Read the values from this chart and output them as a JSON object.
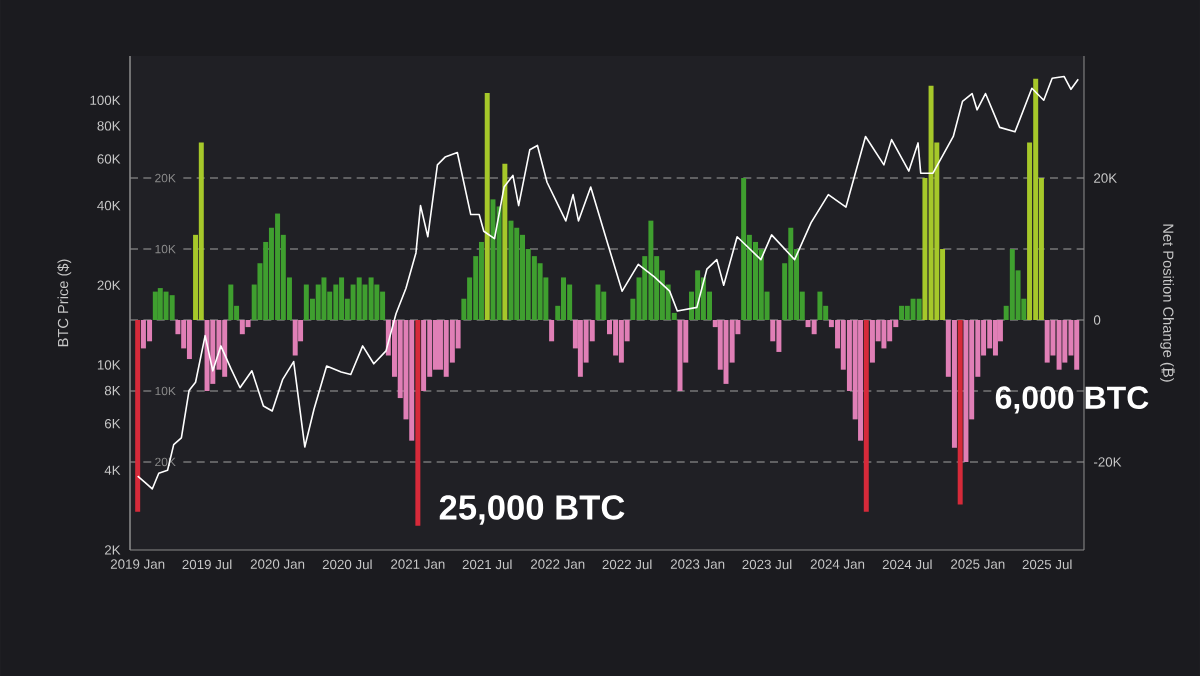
{
  "chart_data": {
    "type": "bar",
    "ylabel": "BTC Price ($)",
    "y2label": "Net Position Change (₿)",
    "annotations": [
      "25,000 BTC",
      "6,000 BTC"
    ],
    "log": "y",
    "grid": "y",
    "xlim": [
      "2018-12-12",
      "2025-10-05"
    ],
    "xticks": [
      {
        "value": "2019-01-01",
        "label": "2019 Jan"
      },
      {
        "value": "2019-07-01",
        "label": "2019 Jul"
      },
      {
        "value": "2020-01-01",
        "label": "2020 Jan"
      },
      {
        "value": "2020-07-01",
        "label": "2020 Jul"
      },
      {
        "value": "2021-01-01",
        "label": "2021 Jan"
      },
      {
        "value": "2021-07-01",
        "label": "2021 Jul"
      },
      {
        "value": "2022-01-01",
        "label": "2022 Jan"
      },
      {
        "value": "2022-07-01",
        "label": "2022 Jul"
      },
      {
        "value": "2023-01-01",
        "label": "2023 Jan"
      },
      {
        "value": "2023-07-01",
        "label": "2023 Jul"
      },
      {
        "value": "2024-01-01",
        "label": "2024 Jan"
      },
      {
        "value": "2024-07-01",
        "label": "2024 Jul"
      },
      {
        "value": "2025-01-01",
        "label": "2025 Jan"
      },
      {
        "value": "2025-07-01",
        "label": "2025 Jul"
      }
    ],
    "ylim": [
      2000,
      147000
    ],
    "yticks": [
      {
        "value": 2000,
        "label": "2K"
      },
      {
        "value": 4000,
        "label": "4K"
      },
      {
        "value": 6000,
        "label": "6K"
      },
      {
        "value": 8000,
        "label": "8K"
      },
      {
        "value": 10000,
        "label": "10K"
      },
      {
        "value": 20000,
        "label": "20K"
      },
      {
        "value": 40000,
        "label": "40K"
      },
      {
        "value": 60000,
        "label": "60K"
      },
      {
        "value": 80000,
        "label": "80K"
      },
      {
        "value": 100000,
        "label": "100K"
      }
    ],
    "y2lim": [
      -32400,
      37200
    ],
    "y2ticks": [
      {
        "value": -20000,
        "label": "-20K"
      },
      {
        "value": -10000,
        "label": null
      },
      0,
      {
        "value": 10000,
        "label": null
      },
      {
        "value": 20000,
        "label": "20K"
      }
    ],
    "y3lim": [
      -32400,
      37200
    ],
    "y3ticks": [
      {
        "value": -20000,
        "label": "20K"
      },
      {
        "value": -10000,
        "label": "10K"
      },
      {
        "value": 10000,
        "label": "10K"
      },
      {
        "value": 20000,
        "label": "20K"
      }
    ],
    "series": [
      {
        "axis": "y2",
        "x": [
          "2019-01-01",
          "2019-01-16",
          "2019-02-01",
          "2019-02-16",
          "2019-03-01",
          "2019-03-16",
          "2019-04-01",
          "2019-04-16",
          "2019-05-01",
          "2019-05-16",
          "2019-06-01",
          "2019-06-16",
          "2019-07-01",
          "2019-07-16",
          "2019-08-01",
          "2019-08-16",
          "2019-09-01",
          "2019-09-16",
          "2019-10-01",
          "2019-10-16",
          "2019-11-01",
          "2019-11-16",
          "2019-12-01",
          "2019-12-16",
          "2020-01-01",
          "2020-01-16",
          "2020-02-01",
          "2020-02-16",
          "2020-03-01",
          "2020-03-16",
          "2020-04-01",
          "2020-04-16",
          "2020-05-01",
          "2020-05-16",
          "2020-06-01",
          "2020-06-16",
          "2020-07-01",
          "2020-07-16",
          "2020-08-01",
          "2020-08-16",
          "2020-09-01",
          "2020-09-16",
          "2020-10-01",
          "2020-10-16",
          "2020-11-01",
          "2020-11-16",
          "2020-12-01",
          "2020-12-16",
          "2021-01-01",
          "2021-01-16",
          "2021-02-01",
          "2021-02-16",
          "2021-03-01",
          "2021-03-16",
          "2021-04-01",
          "2021-04-16",
          "2021-05-01",
          "2021-05-16",
          "2021-06-01",
          "2021-06-16",
          "2021-07-01",
          "2021-07-16",
          "2021-08-01",
          "2021-08-16",
          "2021-09-01",
          "2021-09-16",
          "2021-10-01",
          "2021-10-16",
          "2021-11-01",
          "2021-11-16",
          "2021-12-01",
          "2021-12-16",
          "2022-01-01",
          "2022-01-16",
          "2022-02-01",
          "2022-02-16",
          "2022-03-01",
          "2022-03-16",
          "2022-04-01",
          "2022-04-16",
          "2022-05-01",
          "2022-05-16",
          "2022-06-01",
          "2022-06-16",
          "2022-07-01",
          "2022-07-16",
          "2022-08-01",
          "2022-08-16",
          "2022-09-01",
          "2022-09-16",
          "2022-10-01",
          "2022-10-16",
          "2022-11-01",
          "2022-11-16",
          "2022-12-01",
          "2022-12-16",
          "2023-01-01",
          "2023-01-16",
          "2023-02-01",
          "2023-02-16",
          "2023-03-01",
          "2023-03-16",
          "2023-04-01",
          "2023-04-16",
          "2023-05-01",
          "2023-05-16",
          "2023-06-01",
          "2023-06-16",
          "2023-07-01",
          "2023-07-16",
          "2023-08-01",
          "2023-08-16",
          "2023-09-01",
          "2023-09-16",
          "2023-10-01",
          "2023-10-16",
          "2023-11-01",
          "2023-11-16",
          "2023-12-01",
          "2023-12-16",
          "2024-01-01",
          "2024-01-16",
          "2024-02-01",
          "2024-02-16",
          "2024-03-01",
          "2024-03-16",
          "2024-04-01",
          "2024-04-16",
          "2024-05-01",
          "2024-05-16",
          "2024-06-01",
          "2024-06-16",
          "2024-07-01",
          "2024-07-16",
          "2024-08-01",
          "2024-08-16",
          "2024-09-01",
          "2024-09-16",
          "2024-10-01",
          "2024-10-16",
          "2024-11-01",
          "2024-11-16",
          "2024-12-01",
          "2024-12-16",
          "2025-01-01",
          "2025-01-16",
          "2025-02-01",
          "2025-02-16",
          "2025-03-01",
          "2025-03-16",
          "2025-04-01",
          "2025-04-16",
          "2025-05-01",
          "2025-05-16",
          "2025-06-01",
          "2025-06-16",
          "2025-07-01",
          "2025-07-16",
          "2025-08-01",
          "2025-08-16",
          "2025-09-01",
          "2025-09-16"
        ],
        "values": [
          -27000,
          -4000,
          -3000,
          4000,
          4500,
          4000,
          3500,
          -2000,
          -4000,
          -5500,
          12000,
          25000,
          -10000,
          -9000,
          -7000,
          -8000,
          5000,
          2000,
          -2000,
          -1000,
          5000,
          8000,
          11000,
          13000,
          15000,
          12000,
          6000,
          -5000,
          -3000,
          5000,
          3000,
          5000,
          6000,
          4000,
          5000,
          6000,
          3000,
          5000,
          6000,
          5000,
          6000,
          5000,
          4000,
          -5000,
          -8000,
          -11000,
          -14000,
          -17000,
          -29000,
          -10000,
          -8000,
          -7000,
          -7000,
          -8000,
          -6000,
          -4000,
          3000,
          6000,
          9000,
          11000,
          32000,
          17000,
          16000,
          22000,
          14000,
          13000,
          12000,
          10000,
          9000,
          8000,
          6000,
          -3000,
          2000,
          6000,
          5000,
          -4000,
          -8000,
          -6000,
          -3000,
          5000,
          4000,
          -2000,
          -5000,
          -6000,
          -3000,
          3000,
          6000,
          9000,
          14000,
          9000,
          7000,
          5000,
          1000,
          -10000,
          -6000,
          4000,
          7000,
          6000,
          4000,
          -1000,
          -7000,
          -9000,
          -6000,
          -2000,
          20000,
          12000,
          11000,
          10000,
          4000,
          -3000,
          -4500,
          8000,
          13000,
          10000,
          4000,
          -1000,
          -2000,
          4000,
          2000,
          -1000,
          -4000,
          -7000,
          -10000,
          -14000,
          -17000,
          -27000,
          -6000,
          -3000,
          -4000,
          -3000,
          -1000,
          2000,
          2000,
          3000,
          3000,
          20000,
          33000,
          25000,
          10000,
          -8000,
          -18000,
          -26000,
          -20000,
          -14000,
          -8000,
          -5000,
          -4000,
          -5000,
          -3000,
          2000,
          10000,
          7000,
          3000,
          25000,
          34000,
          20000,
          -6000,
          -5000,
          -7000,
          -6000,
          -5000,
          -7000
        ],
        "colors": [
          "#d62a3a",
          "#e07fb6",
          "#e07fb6",
          "#3f9f2f",
          "#3f9f2f",
          "#3f9f2f",
          "#3f9f2f",
          "#e07fb6",
          "#e07fb6",
          "#e07fb6",
          "#a6c82a",
          "#a6c82a",
          "#e07fb6",
          "#e07fb6",
          "#e07fb6",
          "#e07fb6",
          "#3f9f2f",
          "#3f9f2f",
          "#e07fb6",
          "#e07fb6",
          "#3f9f2f",
          "#3f9f2f",
          "#3f9f2f",
          "#3f9f2f",
          "#3f9f2f",
          "#3f9f2f",
          "#3f9f2f",
          "#e07fb6",
          "#e07fb6",
          "#3f9f2f",
          "#3f9f2f",
          "#3f9f2f",
          "#3f9f2f",
          "#3f9f2f",
          "#3f9f2f",
          "#3f9f2f",
          "#3f9f2f",
          "#3f9f2f",
          "#3f9f2f",
          "#3f9f2f",
          "#3f9f2f",
          "#3f9f2f",
          "#3f9f2f",
          "#e07fb6",
          "#e07fb6",
          "#e07fb6",
          "#e07fb6",
          "#e07fb6",
          "#d62a3a",
          "#e07fb6",
          "#e07fb6",
          "#e07fb6",
          "#e07fb6",
          "#e07fb6",
          "#e07fb6",
          "#e07fb6",
          "#3f9f2f",
          "#3f9f2f",
          "#3f9f2f",
          "#3f9f2f",
          "#a6c82a",
          "#3f9f2f",
          "#3f9f2f",
          "#a6c82a",
          "#3f9f2f",
          "#3f9f2f",
          "#3f9f2f",
          "#3f9f2f",
          "#3f9f2f",
          "#3f9f2f",
          "#3f9f2f",
          "#e07fb6",
          "#3f9f2f",
          "#3f9f2f",
          "#3f9f2f",
          "#e07fb6",
          "#e07fb6",
          "#e07fb6",
          "#e07fb6",
          "#3f9f2f",
          "#3f9f2f",
          "#e07fb6",
          "#e07fb6",
          "#e07fb6",
          "#e07fb6",
          "#3f9f2f",
          "#3f9f2f",
          "#3f9f2f",
          "#3f9f2f",
          "#3f9f2f",
          "#3f9f2f",
          "#3f9f2f",
          "#3f9f2f",
          "#e07fb6",
          "#e07fb6",
          "#3f9f2f",
          "#3f9f2f",
          "#3f9f2f",
          "#3f9f2f",
          "#e07fb6",
          "#e07fb6",
          "#e07fb6",
          "#e07fb6",
          "#e07fb6",
          "#3f9f2f",
          "#3f9f2f",
          "#3f9f2f",
          "#3f9f2f",
          "#3f9f2f",
          "#e07fb6",
          "#e07fb6",
          "#3f9f2f",
          "#3f9f2f",
          "#3f9f2f",
          "#3f9f2f",
          "#e07fb6",
          "#e07fb6",
          "#3f9f2f",
          "#3f9f2f",
          "#e07fb6",
          "#e07fb6",
          "#e07fb6",
          "#e07fb6",
          "#e07fb6",
          "#e07fb6",
          "#d62a3a",
          "#e07fb6",
          "#e07fb6",
          "#e07fb6",
          "#e07fb6",
          "#e07fb6",
          "#3f9f2f",
          "#3f9f2f",
          "#3f9f2f",
          "#3f9f2f",
          "#a6c82a",
          "#a6c82a",
          "#a6c82a",
          "#a6c82a",
          "#e07fb6",
          "#e07fb6",
          "#d62a3a",
          "#e07fb6",
          "#e07fb6",
          "#e07fb6",
          "#e07fb6",
          "#e07fb6",
          "#e07fb6",
          "#e07fb6",
          "#3f9f2f",
          "#3f9f2f",
          "#3f9f2f",
          "#3f9f2f",
          "#a6c82a",
          "#a6c82a",
          "#a6c82a",
          "#e07fb6",
          "#e07fb6",
          "#e07fb6",
          "#e07fb6",
          "#e07fb6",
          "#e07fb6"
        ]
      },
      {
        "type": "line",
        "color": "#ffffff",
        "x": [
          "2019-01-01",
          "2019-01-20",
          "2019-02-08",
          "2019-02-25",
          "2019-03-20",
          "2019-04-05",
          "2019-04-25",
          "2019-05-15",
          "2019-06-01",
          "2019-06-26",
          "2019-07-16",
          "2019-08-06",
          "2019-09-01",
          "2019-09-25",
          "2019-10-26",
          "2019-11-25",
          "2019-12-18",
          "2020-01-14",
          "2020-02-12",
          "2020-03-12",
          "2020-04-05",
          "2020-05-08",
          "2020-06-15",
          "2020-07-10",
          "2020-08-10",
          "2020-09-08",
          "2020-10-10",
          "2020-11-05",
          "2020-12-01",
          "2020-12-27",
          "2021-01-08",
          "2021-01-27",
          "2021-02-21",
          "2021-03-13",
          "2021-04-14",
          "2021-05-19",
          "2021-06-10",
          "2021-06-22",
          "2021-07-20",
          "2021-08-14",
          "2021-09-06",
          "2021-09-21",
          "2021-10-20",
          "2021-11-09",
          "2021-12-04",
          "2022-01-22",
          "2022-02-10",
          "2022-02-24",
          "2022-03-28",
          "2022-05-12",
          "2022-06-18",
          "2022-07-30",
          "2022-09-10",
          "2022-10-20",
          "2022-11-09",
          "2022-12-30",
          "2023-01-25",
          "2023-02-20",
          "2023-03-10",
          "2023-04-14",
          "2023-06-15",
          "2023-07-13",
          "2023-09-11",
          "2023-10-24",
          "2023-12-08",
          "2024-01-23",
          "2024-03-14",
          "2024-05-01",
          "2024-05-21",
          "2024-07-05",
          "2024-07-29",
          "2024-08-05",
          "2024-09-06",
          "2024-10-29",
          "2024-11-22",
          "2024-12-17",
          "2024-12-30",
          "2025-01-21",
          "2025-02-27",
          "2025-04-08",
          "2025-05-22",
          "2025-06-22",
          "2025-07-14",
          "2025-08-14",
          "2025-09-01",
          "2025-09-20"
        ],
        "values": [
          3800,
          3600,
          3400,
          3900,
          4000,
          5000,
          5300,
          8000,
          8600,
          12900,
          9500,
          11800,
          9700,
          8200,
          9500,
          7000,
          6700,
          8800,
          10300,
          4900,
          6800,
          9900,
          9400,
          9200,
          11800,
          10100,
          11300,
          15600,
          19500,
          26500,
          40000,
          30500,
          57000,
          61000,
          63500,
          37000,
          37000,
          32000,
          30000,
          47000,
          52000,
          40000,
          65000,
          67500,
          49000,
          35000,
          44000,
          35000,
          47000,
          28500,
          19000,
          24000,
          21500,
          19000,
          16000,
          16500,
          23000,
          25000,
          20000,
          30500,
          25000,
          31000,
          25000,
          34500,
          44000,
          39500,
          73000,
          57000,
          71000,
          54000,
          69000,
          53000,
          53000,
          73000,
          99000,
          106000,
          92000,
          106000,
          79000,
          76000,
          111000,
          100000,
          121000,
          123000,
          110000,
          120000
        ]
      }
    ]
  }
}
